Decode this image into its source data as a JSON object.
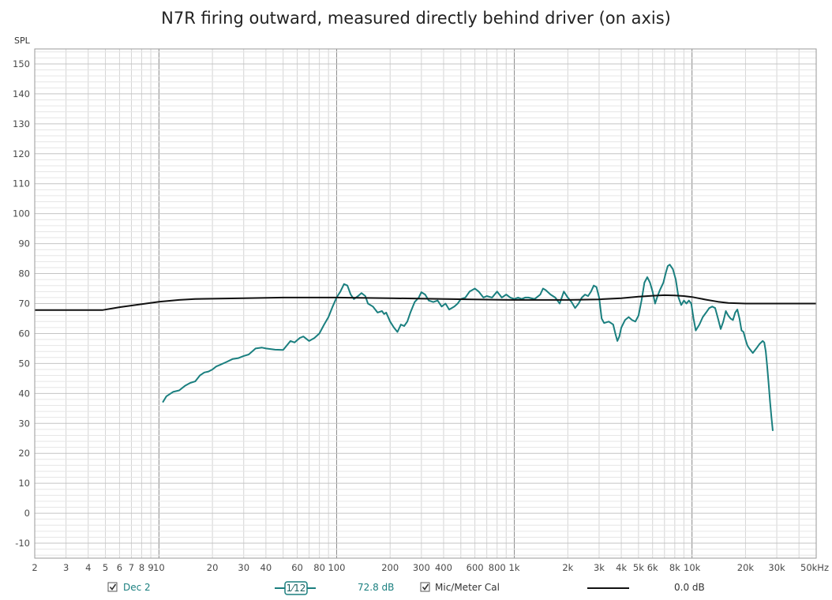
{
  "chart_data": {
    "type": "line",
    "title": "N7R firing outward, measured directly behind driver (on axis)",
    "ylabel": "SPL",
    "xlabel": "",
    "xscale": "log",
    "xlim": [
      2,
      50000
    ],
    "ylim": [
      -15,
      155
    ],
    "grid": true,
    "x_ticks": [
      {
        "v": 2,
        "label": "2"
      },
      {
        "v": 3,
        "label": "3"
      },
      {
        "v": 4,
        "label": "4"
      },
      {
        "v": 5,
        "label": "5"
      },
      {
        "v": 6,
        "label": "6"
      },
      {
        "v": 7,
        "label": "7"
      },
      {
        "v": 8,
        "label": "8"
      },
      {
        "v": 9,
        "label": "9"
      },
      {
        "v": 10,
        "label": "10"
      },
      {
        "v": 20,
        "label": "20"
      },
      {
        "v": 30,
        "label": "30"
      },
      {
        "v": 40,
        "label": "40"
      },
      {
        "v": 60,
        "label": "60"
      },
      {
        "v": 80,
        "label": "80"
      },
      {
        "v": 100,
        "label": "100"
      },
      {
        "v": 200,
        "label": "200"
      },
      {
        "v": 300,
        "label": "300"
      },
      {
        "v": 400,
        "label": "400"
      },
      {
        "v": 600,
        "label": "600"
      },
      {
        "v": 800,
        "label": "800"
      },
      {
        "v": 1000,
        "label": "1k"
      },
      {
        "v": 2000,
        "label": "2k"
      },
      {
        "v": 3000,
        "label": "3k"
      },
      {
        "v": 4000,
        "label": "4k"
      },
      {
        "v": 5000,
        "label": "5k"
      },
      {
        "v": 6000,
        "label": "6k"
      },
      {
        "v": 8000,
        "label": "8k"
      },
      {
        "v": 10000,
        "label": "10k"
      },
      {
        "v": 20000,
        "label": "20k"
      },
      {
        "v": 30000,
        "label": "30k"
      },
      {
        "v": 50000,
        "label": "50kHz"
      }
    ],
    "y_ticks": [
      {
        "v": 150,
        "label": "150"
      },
      {
        "v": 140,
        "label": "140"
      },
      {
        "v": 130,
        "label": "130"
      },
      {
        "v": 120,
        "label": "120"
      },
      {
        "v": 110,
        "label": "110"
      },
      {
        "v": 100,
        "label": "100"
      },
      {
        "v": 90,
        "label": "90"
      },
      {
        "v": 80,
        "label": "80"
      },
      {
        "v": 70,
        "label": "70"
      },
      {
        "v": 60,
        "label": "60"
      },
      {
        "v": 50,
        "label": "50"
      },
      {
        "v": 40,
        "label": "40"
      },
      {
        "v": 30,
        "label": "30"
      },
      {
        "v": 20,
        "label": "20"
      },
      {
        "v": 10,
        "label": "10"
      },
      {
        "v": 0,
        "label": "0"
      },
      {
        "v": -10,
        "label": "-10"
      }
    ],
    "series": [
      {
        "name": "Dec 2",
        "color": "#1a7f7f",
        "points": [
          [
            10.5,
            37
          ],
          [
            11,
            39
          ],
          [
            12,
            40.5
          ],
          [
            13,
            41
          ],
          [
            14,
            42.5
          ],
          [
            15,
            43.5
          ],
          [
            16,
            44
          ],
          [
            17,
            46
          ],
          [
            18,
            47
          ],
          [
            19,
            47.3
          ],
          [
            20,
            48
          ],
          [
            21,
            49
          ],
          [
            22,
            49.5
          ],
          [
            24,
            50.5
          ],
          [
            26,
            51.5
          ],
          [
            28,
            51.8
          ],
          [
            30,
            52.5
          ],
          [
            32,
            53
          ],
          [
            35,
            55
          ],
          [
            38,
            55.3
          ],
          [
            40,
            55
          ],
          [
            45,
            54.6
          ],
          [
            50,
            54.5
          ],
          [
            55,
            57.5
          ],
          [
            58,
            57
          ],
          [
            62,
            58.5
          ],
          [
            65,
            59
          ],
          [
            70,
            57.5
          ],
          [
            75,
            58.5
          ],
          [
            80,
            60
          ],
          [
            85,
            63
          ],
          [
            90,
            65.5
          ],
          [
            95,
            69
          ],
          [
            100,
            72
          ],
          [
            105,
            74
          ],
          [
            110,
            76.5
          ],
          [
            115,
            76
          ],
          [
            120,
            73
          ],
          [
            125,
            71.5
          ],
          [
            132,
            72.5
          ],
          [
            138,
            73.5
          ],
          [
            145,
            72.5
          ],
          [
            150,
            70
          ],
          [
            160,
            69
          ],
          [
            170,
            67
          ],
          [
            180,
            67.5
          ],
          [
            185,
            66.5
          ],
          [
            190,
            67
          ],
          [
            200,
            64
          ],
          [
            210,
            62
          ],
          [
            220,
            60.5
          ],
          [
            230,
            63
          ],
          [
            240,
            62.5
          ],
          [
            250,
            64
          ],
          [
            260,
            67
          ],
          [
            275,
            70.5
          ],
          [
            290,
            72
          ],
          [
            300,
            73.8
          ],
          [
            315,
            73
          ],
          [
            330,
            71
          ],
          [
            350,
            70.5
          ],
          [
            370,
            71
          ],
          [
            390,
            69
          ],
          [
            410,
            70
          ],
          [
            430,
            68
          ],
          [
            460,
            69
          ],
          [
            480,
            70
          ],
          [
            500,
            71.5
          ],
          [
            530,
            72
          ],
          [
            560,
            74
          ],
          [
            600,
            75
          ],
          [
            630,
            74
          ],
          [
            670,
            72
          ],
          [
            700,
            72.5
          ],
          [
            750,
            72
          ],
          [
            800,
            74
          ],
          [
            850,
            72
          ],
          [
            900,
            73
          ],
          [
            950,
            72
          ],
          [
            1000,
            71.5
          ],
          [
            1050,
            72
          ],
          [
            1100,
            71.5
          ],
          [
            1150,
            72
          ],
          [
            1200,
            72
          ],
          [
            1300,
            71.5
          ],
          [
            1400,
            73
          ],
          [
            1450,
            75
          ],
          [
            1500,
            74.5
          ],
          [
            1600,
            73
          ],
          [
            1700,
            72
          ],
          [
            1800,
            70
          ],
          [
            1900,
            74
          ],
          [
            2000,
            72
          ],
          [
            2100,
            70.5
          ],
          [
            2200,
            68.5
          ],
          [
            2300,
            70
          ],
          [
            2400,
            72
          ],
          [
            2500,
            73
          ],
          [
            2600,
            72.5
          ],
          [
            2700,
            74
          ],
          [
            2800,
            76
          ],
          [
            2900,
            75.5
          ],
          [
            3000,
            72
          ],
          [
            3100,
            65
          ],
          [
            3200,
            63.5
          ],
          [
            3400,
            64
          ],
          [
            3600,
            63
          ],
          [
            3700,
            60
          ],
          [
            3800,
            57.5
          ],
          [
            3900,
            59
          ],
          [
            4000,
            62
          ],
          [
            4200,
            64.5
          ],
          [
            4400,
            65.5
          ],
          [
            4600,
            64.5
          ],
          [
            4800,
            64
          ],
          [
            5000,
            66
          ],
          [
            5200,
            71
          ],
          [
            5400,
            77
          ],
          [
            5600,
            78.8
          ],
          [
            5800,
            77
          ],
          [
            6000,
            74
          ],
          [
            6200,
            70
          ],
          [
            6400,
            72.5
          ],
          [
            6600,
            74.5
          ],
          [
            6900,
            77
          ],
          [
            7100,
            80
          ],
          [
            7300,
            82.5
          ],
          [
            7500,
            83
          ],
          [
            7800,
            81.5
          ],
          [
            8100,
            78
          ],
          [
            8400,
            72
          ],
          [
            8700,
            69.5
          ],
          [
            9000,
            71
          ],
          [
            9300,
            70
          ],
          [
            9600,
            71
          ],
          [
            9900,
            70
          ],
          [
            10200,
            65
          ],
          [
            10500,
            61
          ],
          [
            11000,
            63
          ],
          [
            11500,
            65.5
          ],
          [
            12000,
            67
          ],
          [
            12500,
            68.5
          ],
          [
            13000,
            69
          ],
          [
            13500,
            68.5
          ],
          [
            14000,
            65
          ],
          [
            14500,
            61.5
          ],
          [
            15000,
            64
          ],
          [
            15500,
            67.5
          ],
          [
            16000,
            66
          ],
          [
            16500,
            65
          ],
          [
            17000,
            64.5
          ],
          [
            17500,
            67
          ],
          [
            18000,
            68
          ],
          [
            18500,
            65
          ],
          [
            19000,
            61
          ],
          [
            19500,
            60.5
          ],
          [
            20000,
            58
          ],
          [
            20500,
            56
          ],
          [
            21000,
            55
          ],
          [
            22000,
            53.5
          ],
          [
            23000,
            55
          ],
          [
            24000,
            56.5
          ],
          [
            25000,
            57.5
          ],
          [
            25500,
            57
          ],
          [
            26000,
            54
          ],
          [
            26500,
            49
          ],
          [
            27000,
            43
          ],
          [
            27500,
            37
          ],
          [
            28000,
            32
          ],
          [
            28500,
            27.5
          ]
        ]
      },
      {
        "name": "Mic/Meter Cal",
        "color": "#111111",
        "points": [
          [
            2,
            67.8
          ],
          [
            3,
            67.8
          ],
          [
            4,
            67.8
          ],
          [
            4.8,
            67.8
          ],
          [
            6,
            68.8
          ],
          [
            8,
            69.8
          ],
          [
            10,
            70.6
          ],
          [
            13,
            71.2
          ],
          [
            16,
            71.5
          ],
          [
            20,
            71.6
          ],
          [
            30,
            71.8
          ],
          [
            50,
            72
          ],
          [
            100,
            72
          ],
          [
            200,
            71.8
          ],
          [
            400,
            71.5
          ],
          [
            1000,
            71.2
          ],
          [
            2000,
            71.2
          ],
          [
            3000,
            71.4
          ],
          [
            4000,
            71.8
          ],
          [
            5000,
            72.3
          ],
          [
            6000,
            72.6
          ],
          [
            7000,
            72.8
          ],
          [
            8000,
            72.7
          ],
          [
            9000,
            72.5
          ],
          [
            10000,
            72.2
          ],
          [
            12000,
            71.3
          ],
          [
            14000,
            70.6
          ],
          [
            16000,
            70.2
          ],
          [
            20000,
            70
          ],
          [
            50000,
            70
          ]
        ]
      }
    ]
  },
  "legend": {
    "series1_label": "Dec 2",
    "series1_color": "#1a7f7f",
    "smoothing": "1⁄12",
    "series1_value": "72.8 dB",
    "series2_label": "Mic/Meter Cal",
    "series2_value": "0.0 dB"
  }
}
